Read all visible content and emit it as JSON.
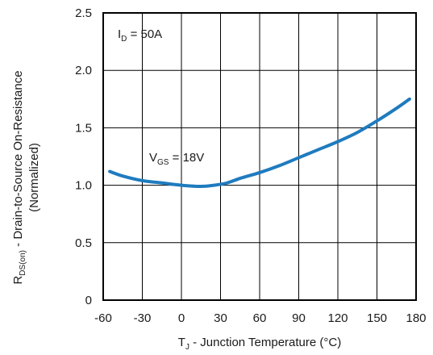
{
  "chart_data": {
    "type": "line",
    "xlabel": {
      "prefix": "T",
      "sub": "J",
      "text": " - Junction Temperature (°C)"
    },
    "ylabel": {
      "prefix": "R",
      "sub": "DS(on)",
      "text": " - Drain-to-Source  On-Resistance",
      "line2": "(Normalized)"
    },
    "xlim": [
      -60,
      180
    ],
    "ylim": [
      0,
      2.5
    ],
    "x_ticks": [
      -60,
      -30,
      0,
      30,
      60,
      90,
      120,
      150,
      180
    ],
    "y_ticks": [
      "0",
      "0.5",
      "1.0",
      "1.5",
      "2.0",
      "2.5"
    ],
    "grid": true,
    "annotations": [
      {
        "prefix": "I",
        "sub": "D",
        "text": " = 50A"
      },
      {
        "prefix": "V",
        "sub": "GS",
        "text": " = 18V"
      }
    ],
    "series": [
      {
        "color": "#1f7bbf",
        "x": [
          -55,
          -45,
          -30,
          -15,
          0,
          15,
          25,
          35,
          45,
          60,
          75,
          90,
          105,
          120,
          135,
          150,
          165,
          175
        ],
        "y": [
          1.12,
          1.08,
          1.04,
          1.02,
          1.0,
          0.99,
          1.0,
          1.02,
          1.06,
          1.11,
          1.17,
          1.24,
          1.31,
          1.38,
          1.46,
          1.56,
          1.67,
          1.75
        ]
      }
    ]
  }
}
